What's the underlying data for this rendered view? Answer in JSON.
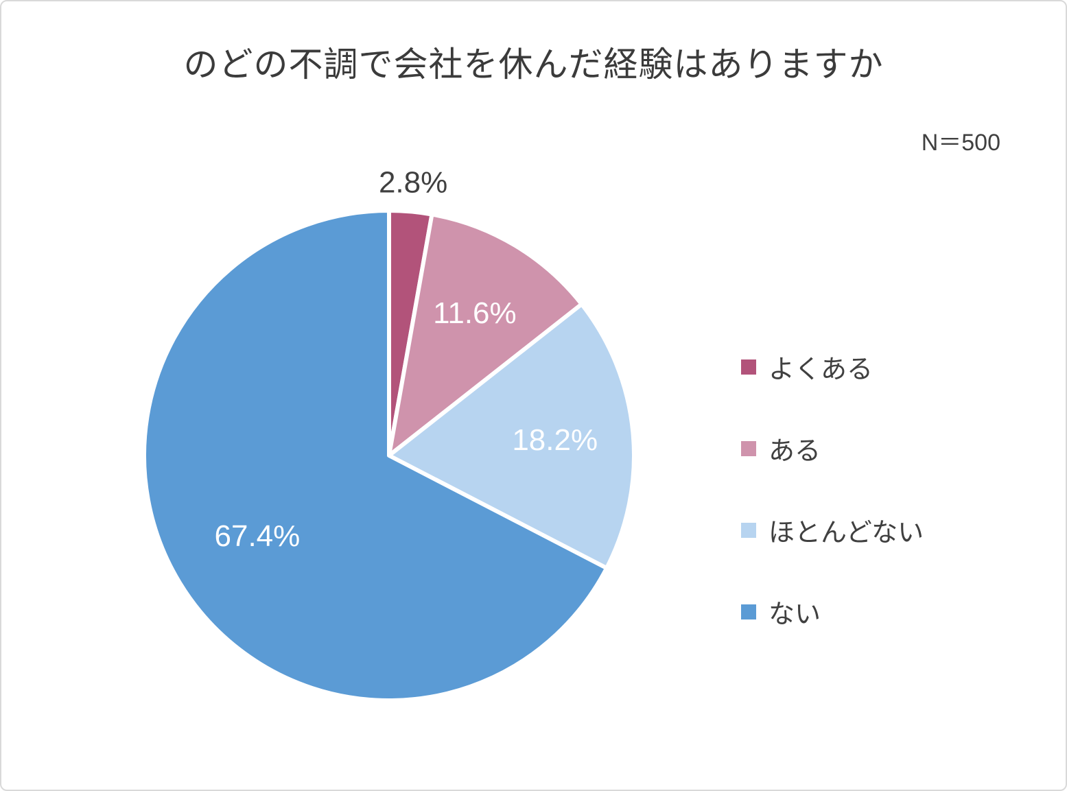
{
  "title": "のどの不調で会社を休んだ経験はありますか",
  "sample_size_label": "N＝500",
  "chart_data": {
    "type": "pie",
    "title": "のどの不調で会社を休んだ経験はありますか",
    "sample_size": 500,
    "start_angle_deg": 0,
    "direction": "clockwise",
    "legend_position": "right",
    "slices": [
      {
        "label": "よくある",
        "value": 2.8,
        "display": "2.8%",
        "color": "#b2537a",
        "label_placement": "outside"
      },
      {
        "label": "ある",
        "value": 11.6,
        "display": "11.6%",
        "color": "#cf93ac",
        "label_placement": "inside"
      },
      {
        "label": "ほとんどない",
        "value": 18.2,
        "display": "18.2%",
        "color": "#b7d4f0",
        "label_placement": "inside"
      },
      {
        "label": "ない",
        "value": 67.4,
        "display": "67.4%",
        "color": "#5b9bd5",
        "label_placement": "inside"
      }
    ],
    "label_colors": {
      "inside": "#ffffff",
      "outside": "#404040"
    }
  }
}
